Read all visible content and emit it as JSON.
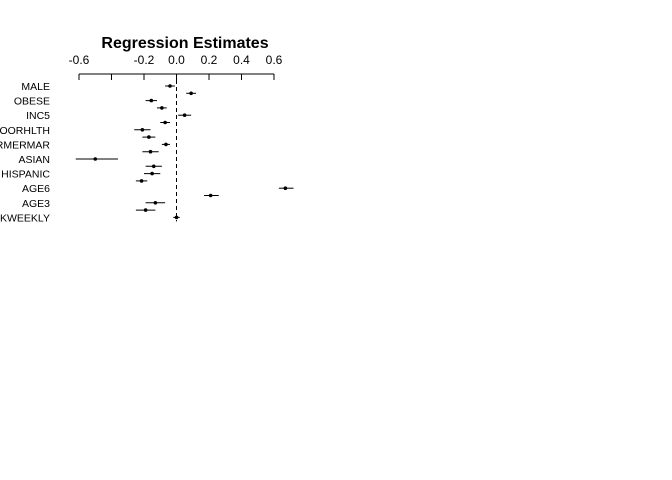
{
  "chart_data": {
    "type": "scatter",
    "title": "Regression Estimates",
    "xlabel": "",
    "ylabel": "",
    "xlim": [
      -0.6,
      0.6
    ],
    "x_ticks": [
      -0.6,
      -0.4,
      -0.2,
      0.0,
      0.2,
      0.4,
      0.6
    ],
    "x_tick_labels": [
      "-0.6",
      "",
      "-0.2",
      "0.0",
      "0.2",
      "0.4",
      "0.6"
    ],
    "reference_line": 0.0,
    "rows": [
      {
        "label": "MALE",
        "estimate": -0.04,
        "lower": -0.07,
        "upper": -0.01
      },
      {
        "label": "",
        "estimate": 0.09,
        "lower": 0.06,
        "upper": 0.12
      },
      {
        "label": "OBESE",
        "estimate": -0.155,
        "lower": -0.19,
        "upper": -0.12
      },
      {
        "label": "",
        "estimate": -0.09,
        "lower": -0.12,
        "upper": -0.06
      },
      {
        "label": "INC5",
        "estimate": 0.05,
        "lower": 0.01,
        "upper": 0.09
      },
      {
        "label": "",
        "estimate": -0.07,
        "lower": -0.1,
        "upper": -0.04
      },
      {
        "label": "POORHLTH",
        "estimate": -0.21,
        "lower": -0.26,
        "upper": -0.16
      },
      {
        "label": "",
        "estimate": -0.17,
        "lower": -0.21,
        "upper": -0.13
      },
      {
        "label": "FORMERMAR",
        "estimate": -0.065,
        "lower": -0.09,
        "upper": -0.04
      },
      {
        "label": "",
        "estimate": -0.16,
        "lower": -0.21,
        "upper": -0.11
      },
      {
        "label": "ASIAN",
        "estimate": -0.5,
        "lower": -0.62,
        "upper": -0.36
      },
      {
        "label": "",
        "estimate": -0.14,
        "lower": -0.19,
        "upper": -0.09
      },
      {
        "label": "HISPANIC",
        "estimate": -0.15,
        "lower": -0.2,
        "upper": -0.1
      },
      {
        "label": "",
        "estimate": -0.215,
        "lower": -0.25,
        "upper": -0.18
      },
      {
        "label": "AGE6",
        "estimate": 0.67,
        "lower": 0.63,
        "upper": 0.72
      },
      {
        "label": "",
        "estimate": 0.21,
        "lower": 0.17,
        "upper": 0.26
      },
      {
        "label": "AGE3",
        "estimate": -0.13,
        "lower": -0.19,
        "upper": -0.07
      },
      {
        "label": "",
        "estimate": -0.19,
        "lower": -0.25,
        "upper": -0.13
      },
      {
        "label": "KWEEKLY",
        "estimate": 0.0,
        "lower": -0.02,
        "upper": 0.02
      }
    ]
  }
}
